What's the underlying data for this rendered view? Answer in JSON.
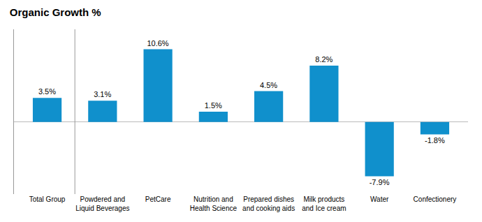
{
  "chart_data": {
    "type": "bar",
    "title": "Organic Growth %",
    "categories": [
      "Total Group",
      "Powdered and\nLiquid Beverages",
      "PetCare",
      "Nutrition and\nHealth Science",
      "Prepared dishes\nand cooking aids",
      "Milk products\nand Ice cream",
      "Water",
      "Confectionery"
    ],
    "values": [
      3.5,
      3.1,
      10.6,
      1.5,
      4.5,
      8.2,
      -7.9,
      -1.8
    ],
    "value_labels": [
      "3.5%",
      "3.1%",
      "10.6%",
      "1.5%",
      "4.5%",
      "8.2%",
      "-7.9%",
      "-1.8%"
    ],
    "data_labels": true,
    "color": "#1090cc",
    "ylim": [
      -10.5,
      13.5
    ],
    "grid": false,
    "tick_labels": "x"
  }
}
